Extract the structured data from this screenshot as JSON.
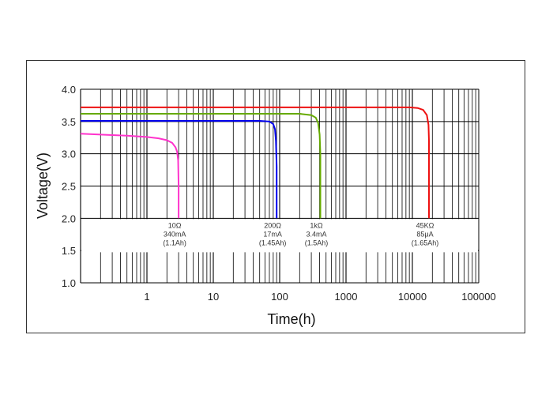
{
  "chart_data": {
    "type": "line",
    "xlabel": "Time(h)",
    "ylabel": "Voltage(V)",
    "x_scale": "log",
    "xlim": [
      0.1,
      100000
    ],
    "ylim": [
      1.0,
      4.0
    ],
    "x_tick_labels": [
      "1",
      "10",
      "100",
      "1000",
      "10000",
      "100000"
    ],
    "y_tick_labels": [
      "1.0",
      "1.5",
      "2.0",
      "2.5",
      "3.0",
      "3.5",
      "4.0"
    ],
    "grid": true,
    "colors": {
      "10ohm": "#ff33cc",
      "200ohm": "#0000ee",
      "1kohm": "#66aa00",
      "45kohm": "#ee1111"
    },
    "series": [
      {
        "key": "10ohm",
        "x": [
          0.1,
          0.5,
          1,
          1.5,
          2.0,
          2.4,
          2.7,
          2.85,
          2.95,
          3.0,
          3.0
        ],
        "y": [
          3.31,
          3.28,
          3.26,
          3.24,
          3.21,
          3.17,
          3.1,
          3.03,
          2.9,
          2.5,
          2.0
        ]
      },
      {
        "key": "200ohm",
        "x": [
          0.1,
          10,
          50,
          70,
          80,
          85,
          88,
          90,
          90
        ],
        "y": [
          3.51,
          3.51,
          3.51,
          3.5,
          3.46,
          3.38,
          3.2,
          2.8,
          2.0
        ]
      },
      {
        "key": "1kohm",
        "x": [
          0.1,
          10,
          200,
          300,
          350,
          380,
          400,
          410,
          410
        ],
        "y": [
          3.62,
          3.62,
          3.62,
          3.6,
          3.56,
          3.48,
          3.3,
          3.0,
          2.0
        ]
      },
      {
        "key": "45kohm",
        "x": [
          0.1,
          10,
          9000,
          12000,
          14500,
          16500,
          17500,
          17800,
          17800
        ],
        "y": [
          3.72,
          3.72,
          3.72,
          3.71,
          3.68,
          3.6,
          3.45,
          3.2,
          2.0
        ]
      }
    ],
    "annotations": [
      {
        "x": 3.0,
        "lines": [
          "10Ω",
          "340mA",
          "(1.1Ah)"
        ]
      },
      {
        "x": 90,
        "lines": [
          "200Ω",
          "17mA",
          "(1.45Ah)"
        ]
      },
      {
        "x": 410,
        "lines": [
          "1kΩ",
          "3.4mA",
          "(1.5Ah)"
        ]
      },
      {
        "x": 17800,
        "lines": [
          "45KΩ",
          "85μA",
          "(1.65Ah)"
        ]
      }
    ]
  }
}
